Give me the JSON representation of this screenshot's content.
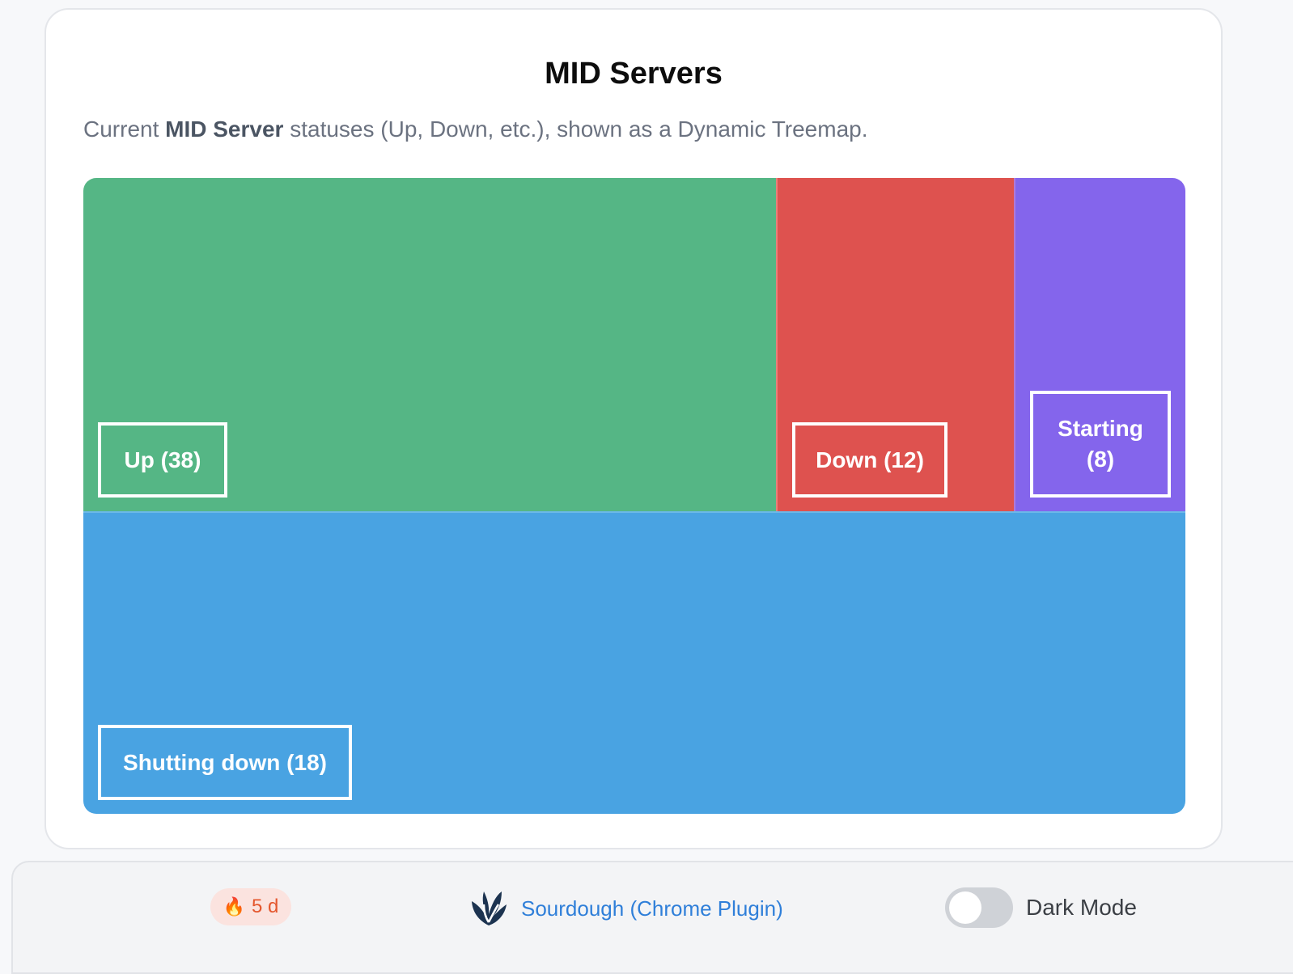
{
  "card": {
    "title": "MID Servers",
    "desc_prefix": "Current ",
    "desc_bold": "MID Server",
    "desc_suffix": " statuses (Up, Down, etc.), shown as a Dynamic Treemap."
  },
  "chart_data": {
    "type": "treemap",
    "items": [
      {
        "name": "Up",
        "value": 38,
        "label": "Up (38)",
        "color": "#55b685"
      },
      {
        "name": "Down",
        "value": 12,
        "label": "Down (12)",
        "color": "#de524f"
      },
      {
        "name": "Starting",
        "value": 8,
        "label_line1": "Starting",
        "label_line2": "(8)",
        "color": "#8465ec"
      },
      {
        "name": "Shutting down",
        "value": 18,
        "label": "Shutting down (18)",
        "color": "#49a3e2"
      }
    ]
  },
  "footer": {
    "streak_icon": "fire-icon",
    "streak_text": "5 d",
    "plugin_icon": "sourdough-logo-icon",
    "plugin_text": "Sourdough (Chrome Plugin)",
    "dark_mode_label": "Dark Mode",
    "dark_mode_on": false,
    "accent_color": "#2f7fd9"
  }
}
